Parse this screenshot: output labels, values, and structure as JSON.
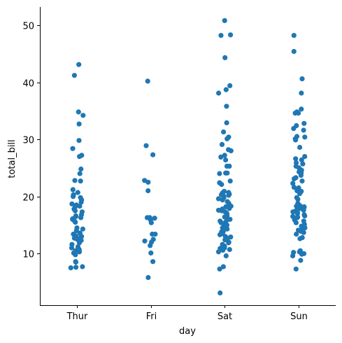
{
  "chart_data": {
    "type": "scatter",
    "subtype": "strip",
    "title": "",
    "xlabel": "day",
    "ylabel": "total_bill",
    "categories": [
      "Thur",
      "Fri",
      "Sat",
      "Sun"
    ],
    "ylim": [
      0.96,
      53.18
    ],
    "yticks": [
      10,
      20,
      30,
      40,
      50
    ],
    "grid": false,
    "legend": "none",
    "point_color": "#1f77b4",
    "series": [
      {
        "category": "Thur",
        "values": [
          43.1,
          41.2,
          34.8,
          34.2,
          32.7,
          29.8,
          28.4,
          27.2,
          27.0,
          24.8,
          24.0,
          22.8,
          22.7,
          21.2,
          20.7,
          20.3,
          20.0,
          19.8,
          19.4,
          19.0,
          18.7,
          18.5,
          18.3,
          18.2,
          17.8,
          17.5,
          17.3,
          16.8,
          16.6,
          16.5,
          16.3,
          16.1,
          16.0,
          15.7,
          15.5,
          14.5,
          14.3,
          14.0,
          13.6,
          13.4,
          13.1,
          13.0,
          12.9,
          12.7,
          12.5,
          12.3,
          11.9,
          11.6,
          11.2,
          11.0,
          10.7,
          10.5,
          10.3,
          10.1,
          9.8,
          8.6,
          8.5,
          7.7,
          7.6,
          7.5
        ]
      },
      {
        "category": "Fri",
        "values": [
          40.2,
          28.9,
          27.3,
          22.8,
          22.5,
          21.0,
          16.3,
          16.3,
          16.2,
          15.9,
          15.4,
          13.4,
          13.4,
          12.5,
          12.2,
          12.0,
          11.4,
          10.1,
          8.6,
          5.8
        ]
      },
      {
        "category": "Sat",
        "values": [
          50.8,
          48.3,
          48.2,
          44.3,
          39.4,
          38.7,
          38.1,
          35.8,
          32.9,
          31.3,
          30.4,
          30.1,
          29.1,
          28.2,
          28.0,
          27.2,
          26.9,
          26.4,
          25.3,
          25.3,
          24.1,
          24.1,
          24.0,
          22.7,
          22.4,
          22.1,
          20.9,
          20.7,
          20.6,
          20.4,
          20.3,
          20.2,
          20.1,
          19.8,
          19.6,
          19.4,
          19.1,
          18.8,
          18.4,
          18.3,
          18.2,
          17.9,
          17.8,
          17.6,
          17.5,
          17.3,
          17.1,
          16.9,
          16.6,
          16.4,
          16.3,
          16.0,
          15.9,
          15.7,
          15.5,
          15.4,
          15.0,
          14.8,
          14.5,
          14.3,
          14.2,
          13.9,
          13.8,
          13.5,
          13.3,
          13.0,
          12.9,
          12.7,
          12.4,
          12.0,
          11.9,
          11.6,
          11.3,
          11.0,
          10.9,
          10.7,
          10.6,
          10.3,
          9.6,
          7.7,
          7.3,
          3.1
        ]
      },
      {
        "category": "Sun",
        "values": [
          48.2,
          45.4,
          40.6,
          38.1,
          35.3,
          34.8,
          34.6,
          34.6,
          32.8,
          32.4,
          31.9,
          31.6,
          30.5,
          30.4,
          30.1,
          29.9,
          28.6,
          27.0,
          26.6,
          26.4,
          25.9,
          25.7,
          25.3,
          25.0,
          24.6,
          24.3,
          24.1,
          23.7,
          23.3,
          23.1,
          22.7,
          22.3,
          21.6,
          21.5,
          21.1,
          21.0,
          20.9,
          20.7,
          20.5,
          19.8,
          19.5,
          18.8,
          18.4,
          18.3,
          18.2,
          18.1,
          17.9,
          17.8,
          17.6,
          17.5,
          17.3,
          17.2,
          17.0,
          16.8,
          16.6,
          16.5,
          16.4,
          16.3,
          15.9,
          15.7,
          15.4,
          15.1,
          14.8,
          14.5,
          14.3,
          14.1,
          13.9,
          13.7,
          13.4,
          12.8,
          12.6,
          10.5,
          10.3,
          10.2,
          10.0,
          9.9,
          9.6,
          8.8,
          7.3
        ]
      }
    ]
  }
}
